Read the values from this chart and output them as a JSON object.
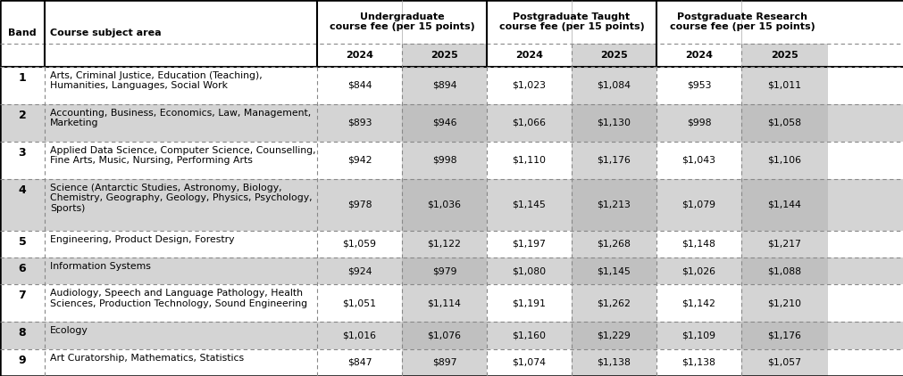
{
  "bands": [
    "1",
    "2",
    "3",
    "4",
    "5",
    "6",
    "7",
    "8",
    "9"
  ],
  "subjects": [
    "Arts, Criminal Justice, Education (Teaching),\nHumanities, Languages, Social Work",
    "Accounting, Business, Economics, Law, Management,\nMarketing",
    "Applied Data Science, Computer Science, Counselling,\nFine Arts, Music, Nursing, Performing Arts",
    "Science (Antarctic Studies, Astronomy, Biology,\nChemistry, Geography, Geology, Physics, Psychology,\nSports)",
    "Engineering, Product Design, Forestry",
    "Information Systems",
    "Audiology, Speech and Language Pathology, Health\nSciences, Production Technology, Sound Engineering",
    "Ecology",
    "Art Curatorship, Mathematics, Statistics"
  ],
  "ug_2024": [
    "$844",
    "$893",
    "$942",
    "$978",
    "$1,059",
    "$924",
    "$1,051",
    "$1,016",
    "$847"
  ],
  "ug_2025": [
    "$894",
    "$946",
    "$998",
    "$1,036",
    "$1,122",
    "$979",
    "$1,114",
    "$1,076",
    "$897"
  ],
  "pgt_2024": [
    "$1,023",
    "$1,066",
    "$1,110",
    "$1,145",
    "$1,197",
    "$1,080",
    "$1,191",
    "$1,160",
    "$1,074"
  ],
  "pgt_2025": [
    "$1,084",
    "$1,130",
    "$1,176",
    "$1,213",
    "$1,268",
    "$1,145",
    "$1,262",
    "$1,229",
    "$1,138"
  ],
  "pgr_2024": [
    "$953",
    "$998",
    "$1,043",
    "$1,079",
    "$1,148",
    "$1,026",
    "$1,142",
    "$1,109",
    "$1,138"
  ],
  "pgr_2025": [
    "$1,011",
    "$1,058",
    "$1,106",
    "$1,144",
    "$1,217",
    "$1,088",
    "$1,210",
    "$1,176",
    "$1,057"
  ],
  "white": "#ffffff",
  "light_gray": "#d4d4d4",
  "mid_gray": "#c0c0c0",
  "header_bold_size": 8.0,
  "cell_size": 7.8,
  "band_size": 9.0
}
